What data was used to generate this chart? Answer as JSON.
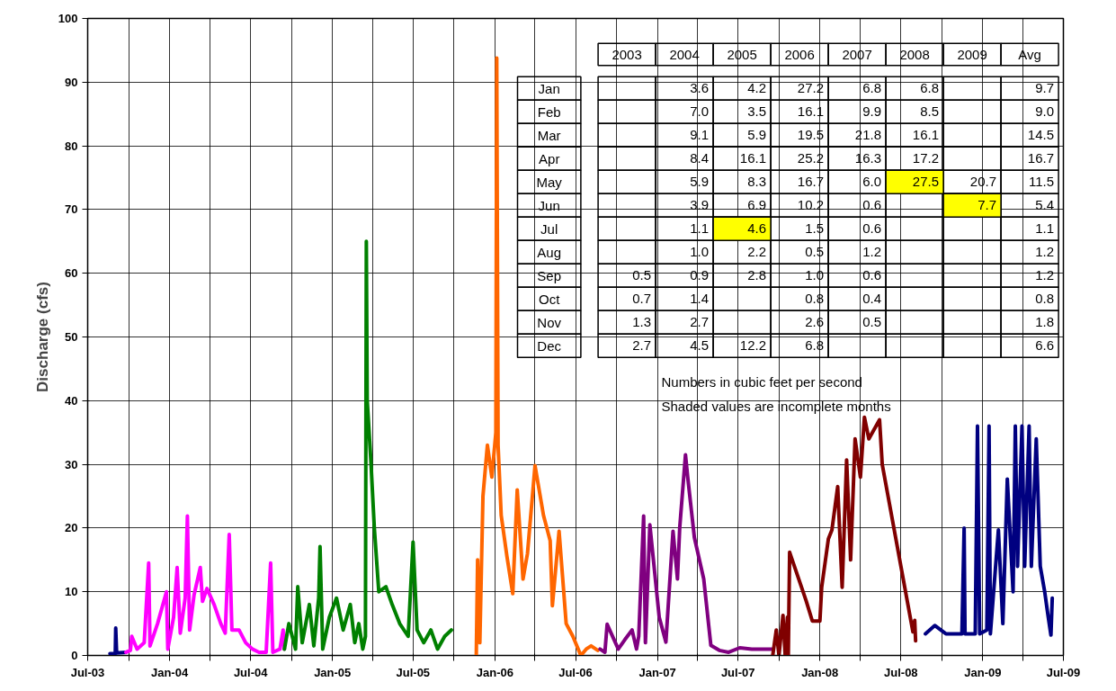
{
  "chart_data": [
    {
      "type": "line",
      "ylabel": "Discharge (cfs)",
      "grid": true,
      "line_style": "solid",
      "xlim": [
        "2003-07-01",
        "2009-07-01"
      ],
      "ylim": [
        0,
        100
      ],
      "xticks": [
        {
          "value": "2003-07-01",
          "label": "Jul-03"
        },
        {
          "value": "2003-10-01",
          "label": null
        },
        {
          "value": "2004-01-01",
          "label": "Jan-04"
        },
        {
          "value": "2004-04-01",
          "label": null
        },
        {
          "value": "2004-07-01",
          "label": "Jul-04"
        },
        {
          "value": "2004-10-01",
          "label": null
        },
        {
          "value": "2005-01-01",
          "label": "Jan-05"
        },
        {
          "value": "2005-04-01",
          "label": null
        },
        {
          "value": "2005-07-01",
          "label": "Jul-05"
        },
        {
          "value": "2005-10-01",
          "label": null
        },
        {
          "value": "2006-01-01",
          "label": "Jan-06"
        },
        {
          "value": "2006-04-01",
          "label": null
        },
        {
          "value": "2006-07-01",
          "label": "Jul-06"
        },
        {
          "value": "2006-10-01",
          "label": null
        },
        {
          "value": "2007-01-01",
          "label": "Jan-07"
        },
        {
          "value": "2007-04-01",
          "label": null
        },
        {
          "value": "2007-07-01",
          "label": "Jul-07"
        },
        {
          "value": "2007-10-01",
          "label": null
        },
        {
          "value": "2008-01-01",
          "label": "Jan-08"
        },
        {
          "value": "2008-04-01",
          "label": null
        },
        {
          "value": "2008-07-01",
          "label": "Jul-08"
        },
        {
          "value": "2008-10-01",
          "label": null
        },
        {
          "value": "2009-01-01",
          "label": "Jan-09"
        },
        {
          "value": "2009-04-01",
          "label": null
        },
        {
          "value": "2009-07-01",
          "label": "Jul-09"
        }
      ],
      "yticks": [
        0,
        10,
        20,
        30,
        40,
        50,
        60,
        70,
        80,
        90,
        100
      ],
      "series": [
        {
          "color": "#000080",
          "x": [
            "2003-08-20",
            "2003-09-01",
            "2003-09-02",
            "2003-09-04",
            "2003-09-25"
          ],
          "values": [
            0.3,
            0.3,
            4.3,
            0.4,
            0.5
          ]
        },
        {
          "color": "#ff00ff",
          "x": [
            "2003-09-25",
            "2003-10-05",
            "2003-10-08",
            "2003-10-20",
            "2003-11-05",
            "2003-11-15",
            "2003-11-18",
            "2003-12-05",
            "2003-12-25",
            "2003-12-28",
            "2004-01-10",
            "2004-01-18",
            "2004-01-25",
            "2004-02-05",
            "2004-02-10",
            "2004-02-15",
            "2004-02-25",
            "2004-03-10",
            "2004-03-15",
            "2004-03-25",
            "2004-04-10",
            "2004-04-25",
            "2004-05-05",
            "2004-05-14",
            "2004-05-20",
            "2004-06-05",
            "2004-06-20",
            "2004-07-05",
            "2004-07-20",
            "2004-08-05",
            "2004-08-15",
            "2004-08-20",
            "2004-09-05",
            "2004-09-12",
            "2004-09-15"
          ],
          "values": [
            0.5,
            0.8,
            3.0,
            1.0,
            2.0,
            14.5,
            1.5,
            5.0,
            10.0,
            1.0,
            6.0,
            13.8,
            3.5,
            9.0,
            21.9,
            4.0,
            9.5,
            13.8,
            8.5,
            10.5,
            8.0,
            5.0,
            3.5,
            19.0,
            4.0,
            4.0,
            2.0,
            1.0,
            0.5,
            0.5,
            14.5,
            0.5,
            1.0,
            4.0,
            1.0
          ]
        },
        {
          "color": "#008000",
          "x": [
            "2004-09-15",
            "2004-09-25",
            "2004-10-10",
            "2004-10-15",
            "2004-10-25",
            "2004-11-10",
            "2004-11-20",
            "2004-12-01",
            "2004-12-04",
            "2004-12-10",
            "2004-12-25",
            "2005-01-10",
            "2005-01-25",
            "2005-02-10",
            "2005-02-20",
            "2005-03-01",
            "2005-03-10",
            "2005-03-16",
            "2005-03-18",
            "2005-03-20",
            "2005-03-28",
            "2005-04-05",
            "2005-04-15",
            "2005-05-01",
            "2005-05-15",
            "2005-06-01",
            "2005-06-20",
            "2005-07-01",
            "2005-07-10",
            "2005-07-25",
            "2005-08-10",
            "2005-08-25",
            "2005-09-10",
            "2005-09-25"
          ],
          "values": [
            1.0,
            5.0,
            1.0,
            10.8,
            2.0,
            8.0,
            1.5,
            9.0,
            17.1,
            1.0,
            6.0,
            9.0,
            4.0,
            8.0,
            2.0,
            5.0,
            1.0,
            3.0,
            65.0,
            40.0,
            30.8,
            20.0,
            10.0,
            10.8,
            8.0,
            5.0,
            3.0,
            17.8,
            4.0,
            2.0,
            4.0,
            1.0,
            3.0,
            4.0
          ]
        },
        {
          "color": "#ff6600",
          "x": [
            "2005-11-20",
            "2005-11-23",
            "2005-11-28",
            "2005-12-05",
            "2005-12-15",
            "2005-12-25",
            "2006-01-03",
            "2006-01-05",
            "2006-01-08",
            "2006-01-15",
            "2006-01-28",
            "2006-02-10",
            "2006-02-20",
            "2006-03-05",
            "2006-03-15",
            "2006-04-01",
            "2006-04-20",
            "2006-05-05",
            "2006-05-10",
            "2006-05-25",
            "2006-06-10",
            "2006-06-25",
            "2006-07-13",
            "2006-07-25",
            "2006-08-05",
            "2006-08-20"
          ],
          "values": [
            0.0,
            15.0,
            2.0,
            25.0,
            33.0,
            28.0,
            35.0,
            93.8,
            33.0,
            22.0,
            15.5,
            9.7,
            26.0,
            12.0,
            16.0,
            29.8,
            22.0,
            18.0,
            7.8,
            19.5,
            5.0,
            3.0,
            0.0,
            1.0,
            1.5,
            0.8
          ]
        },
        {
          "color": "#800080",
          "x": [
            "2006-08-25",
            "2006-09-05",
            "2006-09-10",
            "2006-10-05",
            "2006-10-20",
            "2006-11-05",
            "2006-11-15",
            "2006-11-20",
            "2006-12-01",
            "2006-12-05",
            "2006-12-15",
            "2007-01-05",
            "2007-01-20",
            "2007-02-05",
            "2007-02-15",
            "2007-02-20",
            "2007-03-05",
            "2007-03-10",
            "2007-03-25",
            "2007-04-15",
            "2007-05-01",
            "2007-05-20",
            "2007-06-10",
            "2007-07-05",
            "2007-08-01",
            "2007-09-15"
          ],
          "values": [
            1.0,
            0.5,
            4.9,
            1.0,
            2.5,
            4.0,
            1.0,
            3.0,
            21.9,
            2.0,
            20.5,
            6.0,
            2.1,
            19.5,
            12.0,
            20.0,
            31.5,
            28.0,
            18.5,
            12.0,
            1.6,
            0.8,
            0.5,
            1.2,
            1.0,
            1.0
          ]
        },
        {
          "color": "#800000",
          "x": [
            "2007-09-17",
            "2007-09-25",
            "2007-10-01",
            "2007-10-10",
            "2007-10-15",
            "2007-10-20",
            "2007-10-22",
            "2007-10-25",
            "2007-12-01",
            "2007-12-15",
            "2008-01-01",
            "2008-01-05",
            "2008-01-20",
            "2008-01-28",
            "2008-02-10",
            "2008-02-20",
            "2008-03-01",
            "2008-03-10",
            "2008-03-20",
            "2008-04-01",
            "2008-04-10",
            "2008-04-20",
            "2008-05-14",
            "2008-05-20",
            "2008-07-28",
            "2008-08-01",
            "2008-08-03"
          ],
          "values": [
            0.0,
            4.0,
            0.0,
            6.3,
            0.0,
            6.0,
            0.0,
            16.2,
            8.6,
            5.4,
            5.4,
            10.7,
            18.3,
            19.7,
            26.5,
            10.7,
            30.7,
            15.0,
            34.0,
            28.0,
            37.4,
            34.0,
            37.0,
            30.0,
            3.7,
            5.5,
            2.3
          ]
        },
        {
          "color": "#000080",
          "x": [
            "2008-08-25",
            "2008-09-15",
            "2008-10-10",
            "2008-11-15",
            "2008-11-20",
            "2008-11-22",
            "2008-12-15",
            "2008-12-20",
            "2008-12-25",
            "2009-01-10",
            "2009-01-15",
            "2009-01-18",
            "2009-02-05",
            "2009-02-15",
            "2009-02-25",
            "2009-03-10",
            "2009-03-15",
            "2009-03-20",
            "2009-03-30",
            "2009-04-05",
            "2009-04-15",
            "2009-04-20",
            "2009-05-01",
            "2009-05-10",
            "2009-05-20",
            "2009-05-28",
            "2009-06-03",
            "2009-06-06"
          ],
          "values": [
            3.4,
            4.7,
            3.4,
            3.4,
            20.0,
            3.4,
            3.4,
            36.0,
            3.4,
            4.0,
            36.0,
            3.4,
            19.7,
            5.0,
            27.7,
            10.0,
            36.0,
            14.0,
            36.0,
            14.0,
            36.0,
            14.0,
            34.0,
            14.0,
            10.0,
            6.0,
            3.2,
            9.0
          ]
        }
      ]
    },
    {
      "type": "heatmap",
      "data_labels": true,
      "categories": [
        "2003",
        "2004",
        "2005",
        "2006",
        "2007",
        "2008",
        "2009",
        "Avg"
      ],
      "y_categories": [
        "Jan",
        "Feb",
        "Mar",
        "Apr",
        "May",
        "Jun",
        "Jul",
        "Aug",
        "Sep",
        "Oct",
        "Nov",
        "Dec"
      ],
      "cells": [
        [
          null,
          3.6,
          4.2,
          27.2,
          6.8,
          6.8,
          null,
          9.7
        ],
        [
          null,
          7.0,
          3.5,
          16.1,
          9.9,
          8.5,
          null,
          9.0
        ],
        [
          null,
          9.1,
          5.9,
          19.5,
          21.8,
          16.1,
          null,
          14.5
        ],
        [
          null,
          8.4,
          16.1,
          25.2,
          16.3,
          17.2,
          null,
          16.7
        ],
        [
          null,
          5.9,
          8.3,
          16.7,
          6.0,
          27.5,
          20.7,
          11.5
        ],
        [
          null,
          3.9,
          6.9,
          10.2,
          0.6,
          null,
          7.7,
          5.4
        ],
        [
          null,
          1.1,
          4.6,
          1.5,
          0.6,
          null,
          null,
          1.1
        ],
        [
          null,
          1.0,
          2.2,
          0.5,
          1.2,
          null,
          null,
          1.2
        ],
        [
          0.5,
          0.9,
          2.8,
          1.0,
          0.6,
          null,
          null,
          1.2
        ],
        [
          0.7,
          1.4,
          null,
          0.8,
          0.4,
          null,
          null,
          0.8
        ],
        [
          1.3,
          2.7,
          null,
          2.6,
          0.5,
          null,
          null,
          1.8
        ],
        [
          2.7,
          4.5,
          12.2,
          6.8,
          null,
          null,
          null,
          6.6
        ]
      ],
      "cell_labels": [
        [
          null,
          "3.6",
          "4.2",
          "27.2",
          "6.8",
          "6.8",
          null,
          "9.7"
        ],
        [
          null,
          "7.0",
          "3.5",
          "16.1",
          "9.9",
          "8.5",
          null,
          "9.0"
        ],
        [
          null,
          "9.1",
          "5.9",
          "19.5",
          "21.8",
          "16.1",
          null,
          "14.5"
        ],
        [
          null,
          "8.4",
          "16.1",
          "25.2",
          "16.3",
          "17.2",
          null,
          "16.7"
        ],
        [
          null,
          "5.9",
          "8.3",
          "16.7",
          "6.0",
          "27.5",
          "20.7",
          "11.5"
        ],
        [
          null,
          "3.9",
          "6.9",
          "10.2",
          "0.6",
          null,
          "7.7",
          "5.4"
        ],
        [
          null,
          "1.1",
          "4.6",
          "1.5",
          "0.6",
          null,
          null,
          "1.1"
        ],
        [
          null,
          "1.0",
          "2.2",
          "0.5",
          "1.2",
          null,
          null,
          "1.2"
        ],
        [
          "0.5",
          "0.9",
          "2.8",
          "1.0",
          "0.6",
          null,
          null,
          "1.2"
        ],
        [
          "0.7",
          "1.4",
          null,
          "0.8",
          "0.4",
          null,
          null,
          "0.8"
        ],
        [
          "1.3",
          "2.7",
          null,
          "2.6",
          "0.5",
          null,
          null,
          "1.8"
        ],
        [
          "2.7",
          "4.5",
          "12.2",
          "6.8",
          null,
          null,
          null,
          "6.6"
        ]
      ],
      "colors": [
        [
          null,
          null,
          null,
          null,
          null,
          null,
          null,
          null
        ],
        [
          null,
          null,
          null,
          null,
          null,
          null,
          null,
          null
        ],
        [
          null,
          null,
          null,
          null,
          null,
          null,
          null,
          null
        ],
        [
          null,
          null,
          null,
          null,
          null,
          null,
          null,
          null
        ],
        [
          null,
          null,
          null,
          null,
          null,
          "#ffff00",
          null,
          null
        ],
        [
          null,
          null,
          null,
          null,
          null,
          null,
          "#ffff00",
          null
        ],
        [
          null,
          null,
          "#ffff00",
          null,
          null,
          null,
          null,
          null
        ],
        [
          null,
          null,
          null,
          null,
          null,
          null,
          null,
          null
        ],
        [
          null,
          null,
          null,
          null,
          null,
          null,
          null,
          null
        ],
        [
          null,
          null,
          null,
          null,
          null,
          null,
          null,
          null
        ],
        [
          null,
          null,
          null,
          null,
          null,
          null,
          null,
          null
        ],
        [
          null,
          null,
          null,
          null,
          null,
          null,
          null,
          null
        ]
      ],
      "annotations": [
        "Numbers in cubic feet per second",
        "Shaded values are incomplete months"
      ]
    }
  ]
}
